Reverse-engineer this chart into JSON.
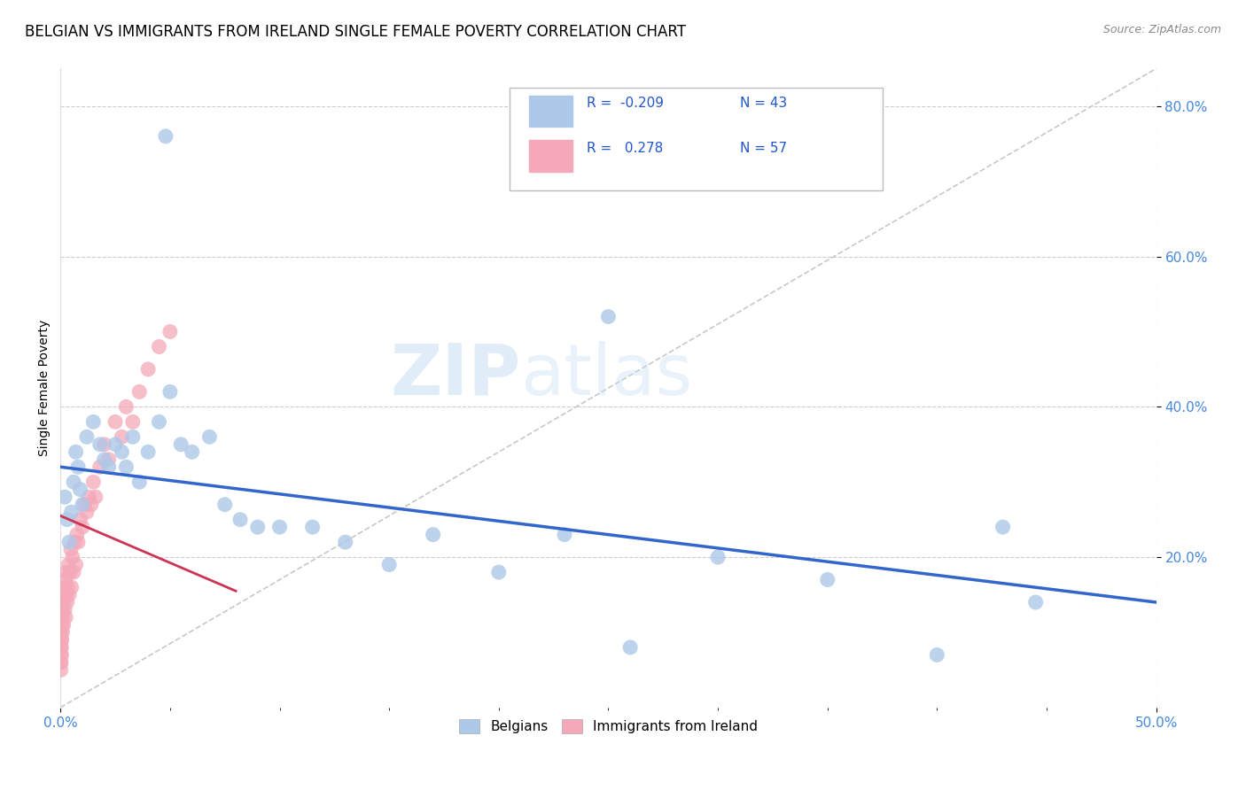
{
  "title": "BELGIAN VS IMMIGRANTS FROM IRELAND SINGLE FEMALE POVERTY CORRELATION CHART",
  "source": "Source: ZipAtlas.com",
  "ylabel": "Single Female Poverty",
  "xlim": [
    0.0,
    0.5
  ],
  "ylim": [
    0.0,
    0.85
  ],
  "belgian_R": -0.209,
  "belgian_N": 43,
  "ireland_R": 0.278,
  "ireland_N": 57,
  "belgian_color": "#adc8e8",
  "ireland_color": "#f4a8b8",
  "belgian_line_color": "#3366cc",
  "ireland_line_color": "#cc3355",
  "diagonal_color": "#c8c8c8",
  "background_color": "#ffffff",
  "grid_color": "#cccccc",
  "watermark": "ZIPatlas",
  "title_fontsize": 12,
  "axis_label_fontsize": 10,
  "tick_fontsize": 11,
  "belgian_x": [
    0.048,
    0.002,
    0.003,
    0.004,
    0.005,
    0.006,
    0.007,
    0.008,
    0.009,
    0.01,
    0.012,
    0.015,
    0.018,
    0.02,
    0.022,
    0.025,
    0.028,
    0.03,
    0.033,
    0.036,
    0.04,
    0.045,
    0.05,
    0.055,
    0.06,
    0.068,
    0.075,
    0.082,
    0.09,
    0.1,
    0.115,
    0.13,
    0.15,
    0.17,
    0.2,
    0.23,
    0.26,
    0.3,
    0.35,
    0.4,
    0.43,
    0.445,
    0.25
  ],
  "belgian_y": [
    0.76,
    0.28,
    0.25,
    0.22,
    0.26,
    0.3,
    0.34,
    0.32,
    0.29,
    0.27,
    0.36,
    0.38,
    0.35,
    0.33,
    0.32,
    0.35,
    0.34,
    0.32,
    0.36,
    0.3,
    0.34,
    0.38,
    0.42,
    0.35,
    0.34,
    0.36,
    0.27,
    0.25,
    0.24,
    0.24,
    0.24,
    0.22,
    0.19,
    0.23,
    0.18,
    0.23,
    0.08,
    0.2,
    0.17,
    0.07,
    0.24,
    0.14,
    0.52
  ],
  "ireland_x": [
    0.0002,
    0.0003,
    0.0004,
    0.0005,
    0.0006,
    0.0007,
    0.0008,
    0.0009,
    0.001,
    0.0012,
    0.0014,
    0.0016,
    0.0018,
    0.002,
    0.0022,
    0.0024,
    0.0026,
    0.0028,
    0.003,
    0.0033,
    0.0036,
    0.004,
    0.0044,
    0.0048,
    0.005,
    0.0055,
    0.006,
    0.0065,
    0.007,
    0.0075,
    0.008,
    0.009,
    0.01,
    0.011,
    0.012,
    0.013,
    0.014,
    0.015,
    0.016,
    0.018,
    0.02,
    0.022,
    0.025,
    0.028,
    0.03,
    0.033,
    0.036,
    0.04,
    0.045,
    0.05,
    0.0001,
    0.0001,
    0.0002,
    0.0002,
    0.0003,
    0.0004,
    0.0005
  ],
  "ireland_y": [
    0.1,
    0.12,
    0.08,
    0.14,
    0.09,
    0.11,
    0.13,
    0.1,
    0.12,
    0.15,
    0.11,
    0.14,
    0.16,
    0.13,
    0.17,
    0.12,
    0.15,
    0.18,
    0.14,
    0.16,
    0.19,
    0.15,
    0.18,
    0.21,
    0.16,
    0.2,
    0.18,
    0.22,
    0.19,
    0.23,
    0.22,
    0.25,
    0.24,
    0.27,
    0.26,
    0.28,
    0.27,
    0.3,
    0.28,
    0.32,
    0.35,
    0.33,
    0.38,
    0.36,
    0.4,
    0.38,
    0.42,
    0.45,
    0.48,
    0.5,
    0.06,
    0.07,
    0.05,
    0.08,
    0.06,
    0.09,
    0.07
  ],
  "blue_line_x0": 0.0,
  "blue_line_y0": 0.32,
  "blue_line_x1": 0.5,
  "blue_line_y1": 0.14,
  "red_line_x0": 0.0,
  "red_line_y0": 0.255,
  "red_line_x1": 0.08,
  "red_line_y1": 0.155
}
